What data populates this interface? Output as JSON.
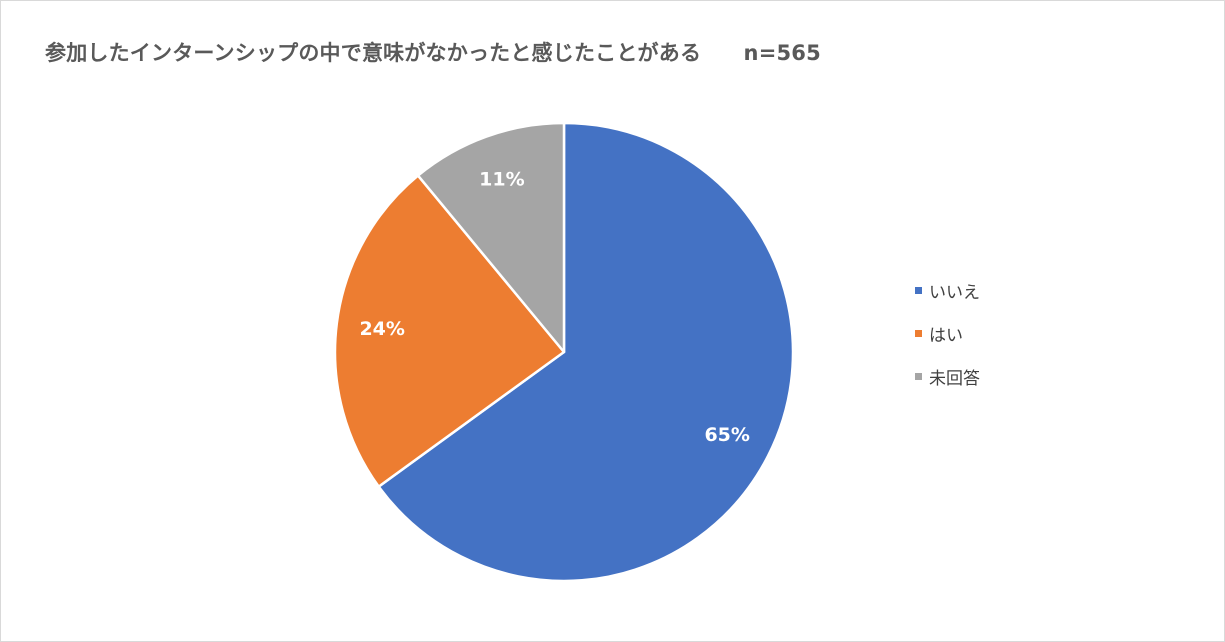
{
  "chart_data": {
    "type": "pie",
    "title": "参加したインターンシップの中で意味がなかったと感じたことがある　　n=565",
    "slices": [
      {
        "label": "いいえ",
        "value": 65,
        "data_label": "65%",
        "color": "#4472C4"
      },
      {
        "label": "はい",
        "value": 24,
        "data_label": "24%",
        "color": "#ED7D31"
      },
      {
        "label": "未回答",
        "value": 11,
        "data_label": "11%",
        "color": "#A5A5A5"
      }
    ],
    "start_angle_deg": 0,
    "direction": "clockwise",
    "legend_position": "right"
  }
}
